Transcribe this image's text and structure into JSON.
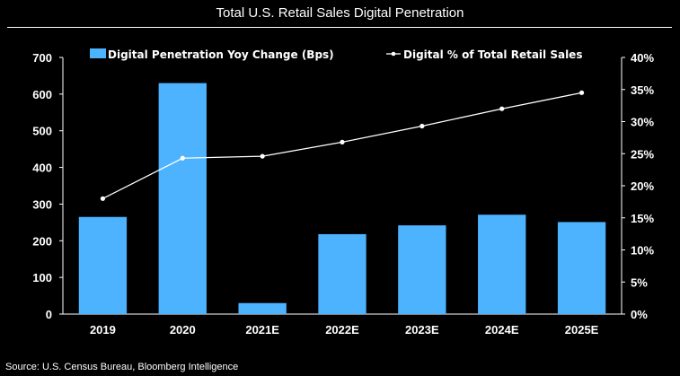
{
  "chart_data": {
    "type": "bar",
    "title": "Total U.S. Retail Sales Digital Penetration",
    "categories": [
      "2019",
      "2020",
      "2021E",
      "2022E",
      "2023E",
      "2024E",
      "2025E"
    ],
    "series": [
      {
        "name": "Digital Penetration Yoy Change (Bps)",
        "type": "bar",
        "axis": "left",
        "color": "#4db3ff",
        "values": [
          265,
          630,
          30,
          218,
          242,
          271,
          251
        ]
      },
      {
        "name": "Digital % of Total Retail Sales",
        "type": "line",
        "axis": "right",
        "color": "#ffffff",
        "values": [
          18.0,
          24.3,
          24.6,
          26.8,
          29.3,
          32.0,
          34.5
        ]
      }
    ],
    "ylim_left": [
      0,
      700
    ],
    "yticks_left": [
      "0",
      "100",
      "200",
      "300",
      "400",
      "500",
      "600",
      "700"
    ],
    "ylim_right": [
      0,
      40
    ],
    "yticks_right": [
      "0%",
      "5%",
      "10%",
      "15%",
      "20%",
      "25%",
      "30%",
      "35%",
      "40%"
    ],
    "legend_position": "top",
    "grid": false
  },
  "source": "Source: U.S. Census Bureau, Bloomberg Intelligence"
}
